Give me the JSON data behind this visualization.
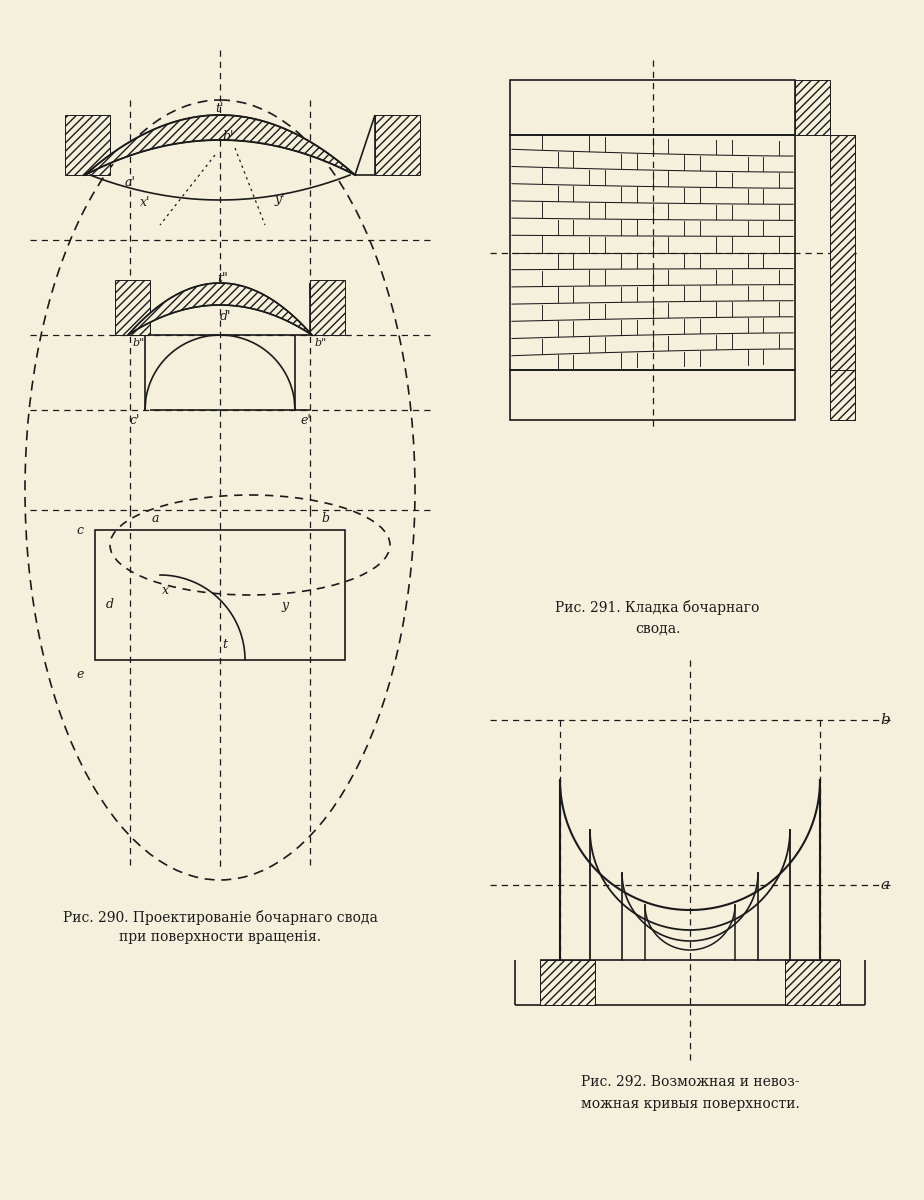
{
  "bg_color": "#f5f0dc",
  "line_color": "#1a1a1a",
  "fig290_caption_line1": "Рис. 290. Проектированіе бочарнаго свода",
  "fig290_caption_line2": "при поверхности вращенія.",
  "fig291_caption_line1": "Рис. 291. Кладка бочарнаго",
  "fig291_caption_line2": "свода.",
  "fig292_caption_line1": "Рис. 292. Возможная и невоз-",
  "fig292_caption_line2": "можная кривыя поверхности."
}
